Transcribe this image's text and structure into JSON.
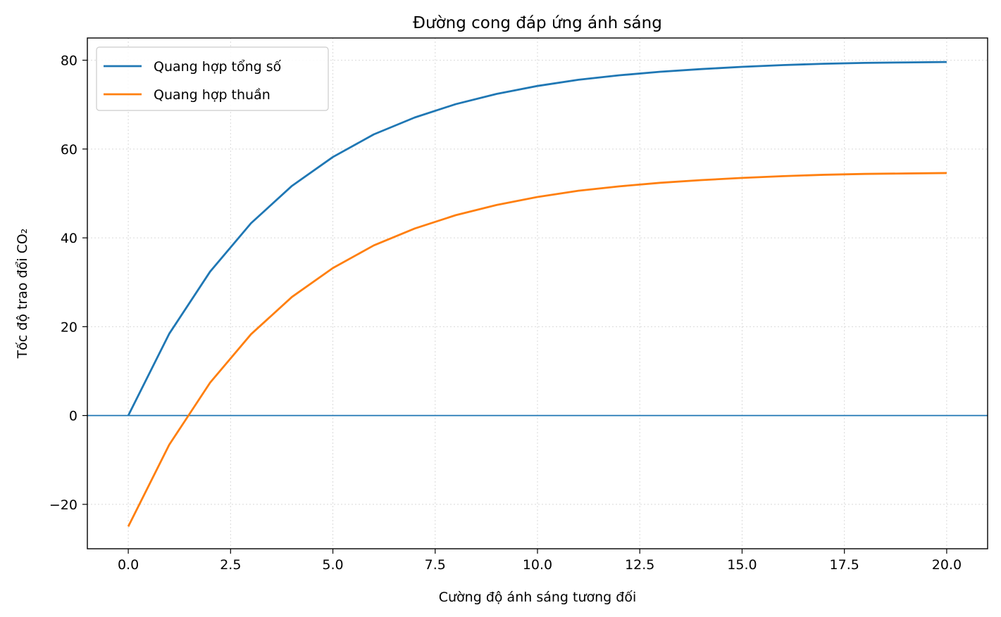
{
  "chart_data": {
    "type": "line",
    "title": "Đường cong đáp ứng ánh sáng",
    "xlabel": "Cường độ ánh sáng tương đối",
    "ylabel": "Tốc độ trao đổi CO₂",
    "xlim": [
      -1,
      21
    ],
    "ylim": [
      -30,
      85
    ],
    "xticks": [
      0,
      2.5,
      5,
      7.5,
      10,
      12.5,
      15,
      17.5,
      20
    ],
    "xtick_labels": [
      "0.0",
      "2.5",
      "5.0",
      "7.5",
      "10.0",
      "12.5",
      "15.0",
      "17.5",
      "20.0"
    ],
    "yticks": [
      -20,
      0,
      20,
      40,
      60,
      80
    ],
    "ytick_labels": [
      "−20",
      "0",
      "20",
      "40",
      "60",
      "80"
    ],
    "grid": true,
    "legend_position": "upper-left",
    "reference_line": {
      "y": 0,
      "color": "#1f77b4"
    },
    "x": [
      0,
      1,
      2,
      3,
      4,
      5,
      6,
      7,
      8,
      9,
      10,
      11,
      12,
      13,
      14,
      15,
      16,
      17,
      18,
      19,
      20
    ],
    "series": [
      {
        "name": "Quang hợp tổng số",
        "color": "#1f77b4",
        "values": [
          0,
          18.4,
          32.4,
          43.3,
          51.7,
          58.2,
          63.3,
          67.1,
          70.1,
          72.4,
          74.2,
          75.6,
          76.6,
          77.4,
          78.0,
          78.5,
          78.9,
          79.2,
          79.4,
          79.5,
          79.6
        ]
      },
      {
        "name": "Quang hợp thuần",
        "color": "#ff7f0e",
        "values": [
          -25,
          -6.6,
          7.4,
          18.3,
          26.7,
          33.2,
          38.3,
          42.1,
          45.1,
          47.4,
          49.2,
          50.6,
          51.6,
          52.4,
          53.0,
          53.5,
          53.9,
          54.2,
          54.4,
          54.5,
          54.6
        ]
      }
    ]
  }
}
